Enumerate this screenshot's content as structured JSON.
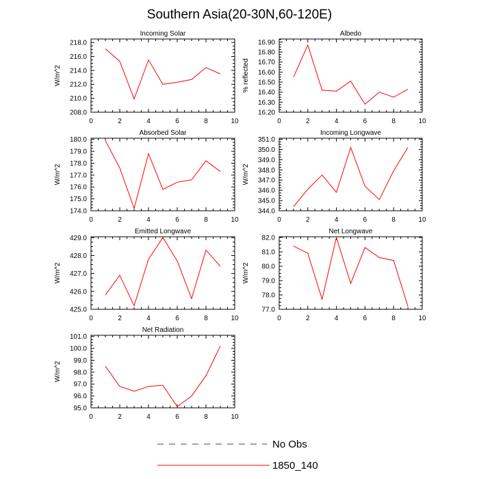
{
  "title": "Southern Asia(20-30N,60-120E)",
  "colors": {
    "model": "#ff0000",
    "obs": "#3a3aa6",
    "axis": "#000000"
  },
  "legend": {
    "obs_label": "No Obs",
    "model_label": "1850_140"
  },
  "chart_data": [
    {
      "type": "line",
      "title": "Incoming Solar",
      "ylabel": "W/m^2",
      "xlim": [
        0,
        10
      ],
      "ylim": [
        208,
        218.5
      ],
      "xticks": [
        0,
        2,
        4,
        6,
        8,
        10
      ],
      "xtick_labels": [
        "0",
        "2",
        "4",
        "6",
        "8",
        "10"
      ],
      "yticks": [
        208,
        210,
        212,
        214,
        216,
        218
      ],
      "ytick_labels": [
        "208.0",
        "210.0",
        "212.0",
        "214.0",
        "216.0",
        "218.0"
      ],
      "x": [
        1,
        2,
        3,
        4,
        5,
        6,
        7,
        8,
        9
      ],
      "series": [
        {
          "name": "1850_140",
          "values": [
            217.1,
            215.3,
            209.9,
            215.5,
            212.0,
            212.3,
            212.7,
            214.4,
            213.5
          ]
        }
      ]
    },
    {
      "type": "line",
      "title": "Albedo",
      "ylabel": "% reflected",
      "xlim": [
        0,
        10
      ],
      "ylim": [
        16.2,
        16.93
      ],
      "xticks": [
        0,
        2,
        4,
        6,
        8,
        10
      ],
      "xtick_labels": [
        "0",
        "2",
        "4",
        "6",
        "8",
        "10"
      ],
      "yticks": [
        16.2,
        16.3,
        16.4,
        16.5,
        16.6,
        16.7,
        16.8,
        16.9
      ],
      "ytick_labels": [
        "16.20",
        "16.30",
        "16.40",
        "16.50",
        "16.60",
        "16.70",
        "16.80",
        "16.90"
      ],
      "x": [
        1,
        2,
        3,
        4,
        5,
        6,
        7,
        8,
        9
      ],
      "series": [
        {
          "name": "1850_140",
          "values": [
            16.55,
            16.87,
            16.42,
            16.41,
            16.51,
            16.28,
            16.4,
            16.35,
            16.43
          ]
        }
      ]
    },
    {
      "type": "line",
      "title": "Absorbed Solar",
      "ylabel": "W/m^2",
      "xlim": [
        0,
        10
      ],
      "ylim": [
        174,
        180.1
      ],
      "xticks": [
        0,
        2,
        4,
        6,
        8,
        10
      ],
      "xtick_labels": [
        "0",
        "2",
        "4",
        "6",
        "8",
        "10"
      ],
      "yticks": [
        174,
        175,
        176,
        177,
        178,
        179,
        180
      ],
      "ytick_labels": [
        "174.0",
        "175.0",
        "176.0",
        "177.0",
        "178.0",
        "179.0",
        "180.0"
      ],
      "x": [
        1,
        2,
        3,
        4,
        5,
        6,
        7,
        8,
        9
      ],
      "series": [
        {
          "name": "1850_140",
          "values": [
            179.9,
            177.6,
            174.2,
            178.8,
            175.8,
            176.4,
            176.6,
            178.2,
            177.3
          ]
        }
      ]
    },
    {
      "type": "line",
      "title": "Incoming Longwave",
      "ylabel": "W/m^2",
      "xlim": [
        0,
        10
      ],
      "ylim": [
        344,
        351.1
      ],
      "xticks": [
        0,
        2,
        4,
        6,
        8,
        10
      ],
      "xtick_labels": [
        "0",
        "2",
        "4",
        "6",
        "8",
        "10"
      ],
      "yticks": [
        344,
        345,
        346,
        347,
        348,
        349,
        350,
        351
      ],
      "ytick_labels": [
        "344.0",
        "345.0",
        "346.0",
        "347.0",
        "348.0",
        "349.0",
        "350.0",
        "351.0"
      ],
      "x": [
        1,
        2,
        3,
        4,
        5,
        6,
        7,
        8,
        9
      ],
      "series": [
        {
          "name": "1850_140",
          "values": [
            344.4,
            346.1,
            347.5,
            345.8,
            350.2,
            346.4,
            345.1,
            347.9,
            350.2
          ]
        }
      ]
    },
    {
      "type": "line",
      "title": "Emitted Longwave",
      "ylabel": "W/m^2",
      "xlim": [
        0,
        10
      ],
      "ylim": [
        425,
        429.05
      ],
      "xticks": [
        0,
        2,
        4,
        6,
        8,
        10
      ],
      "xtick_labels": [
        "0",
        "2",
        "4",
        "6",
        "8",
        "10"
      ],
      "yticks": [
        425,
        426,
        427,
        428,
        429
      ],
      "ytick_labels": [
        "425.0",
        "426.0",
        "427.0",
        "428.0",
        "429.0"
      ],
      "x": [
        1,
        2,
        3,
        4,
        5,
        6,
        7,
        8,
        9
      ],
      "series": [
        {
          "name": "1850_140",
          "values": [
            425.8,
            426.9,
            425.2,
            427.8,
            429.0,
            427.7,
            425.6,
            428.3,
            427.4
          ]
        }
      ]
    },
    {
      "type": "line",
      "title": "Net Longwave",
      "ylabel": "W/m^2",
      "xlim": [
        0,
        10
      ],
      "ylim": [
        77,
        82.05
      ],
      "xticks": [
        0,
        2,
        4,
        6,
        8,
        10
      ],
      "xtick_labels": [
        "0",
        "2",
        "4",
        "6",
        "8",
        "10"
      ],
      "yticks": [
        77,
        78,
        79,
        80,
        81,
        82
      ],
      "ytick_labels": [
        "77.0",
        "78.0",
        "79.0",
        "80.0",
        "81.0",
        "82.0"
      ],
      "x": [
        1,
        2,
        3,
        4,
        5,
        6,
        7,
        8,
        9
      ],
      "series": [
        {
          "name": "1850_140",
          "values": [
            81.4,
            80.9,
            77.7,
            82.0,
            78.8,
            81.3,
            80.6,
            80.4,
            77.2
          ]
        }
      ]
    },
    {
      "type": "line",
      "title": "Net Radiation",
      "ylabel": "W/m^2",
      "xlim": [
        0,
        10
      ],
      "ylim": [
        95,
        101.1
      ],
      "xticks": [
        0,
        2,
        4,
        6,
        8,
        10
      ],
      "xtick_labels": [
        "0",
        "2",
        "4",
        "6",
        "8",
        "10"
      ],
      "yticks": [
        95,
        96,
        97,
        98,
        99,
        100,
        101
      ],
      "ytick_labels": [
        "95.0",
        "96.0",
        "97.0",
        "98.0",
        "99.0",
        "100.0",
        "101.0"
      ],
      "x": [
        1,
        2,
        3,
        4,
        5,
        6,
        7,
        8,
        9
      ],
      "series": [
        {
          "name": "1850_140",
          "values": [
            98.5,
            96.8,
            96.4,
            96.8,
            96.9,
            95.1,
            96.0,
            97.7,
            100.2
          ]
        }
      ]
    }
  ]
}
